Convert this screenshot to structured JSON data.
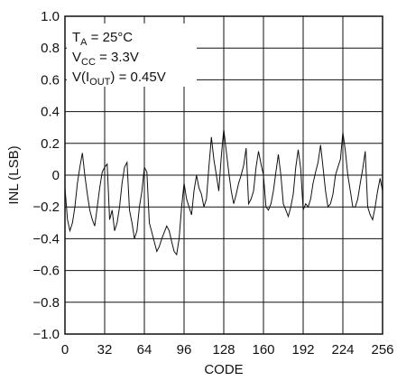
{
  "chart_data": {
    "type": "line",
    "title": "",
    "xlabel": "CODE",
    "ylabel": "INL (LSB)",
    "xlim": [
      0,
      256
    ],
    "ylim": [
      -1.0,
      1.0
    ],
    "grid": true,
    "x_ticks": [
      0,
      32,
      64,
      96,
      128,
      160,
      192,
      224,
      256
    ],
    "x_tick_labels": [
      "0",
      "32",
      "64",
      "96",
      "128",
      "160",
      "192",
      "224",
      "256"
    ],
    "y_ticks": [
      -1.0,
      -0.8,
      -0.6,
      -0.4,
      -0.2,
      0,
      0.2,
      0.4,
      0.6,
      0.8,
      1.0
    ],
    "y_tick_labels": [
      "−1.0",
      "−0.8",
      "−0.6",
      "−0.4",
      "−0.2",
      "0",
      "0.2",
      "0.4",
      "0.6",
      "0.8",
      "1.0"
    ],
    "annotations": [
      {
        "base": "T",
        "sub": "A",
        "rest": " = 25°C"
      },
      {
        "base": "V",
        "sub": "CC",
        "rest": " = 3.3V"
      },
      {
        "base": "V(I",
        "sub": "OUT",
        "rest": ") = 0.45V"
      }
    ],
    "series": [
      {
        "x": [
          0,
          2,
          4,
          6,
          8,
          10,
          12,
          14,
          16,
          18,
          20,
          22,
          24,
          26,
          28,
          30,
          32,
          34,
          36,
          38,
          40,
          42,
          44,
          46,
          48,
          50,
          52,
          54,
          56,
          58,
          60,
          62,
          64,
          66,
          68,
          70,
          72,
          74,
          76,
          78,
          80,
          82,
          84,
          86,
          88,
          90,
          92,
          94,
          96,
          98,
          100,
          102,
          104,
          106,
          108,
          110,
          112,
          114,
          116,
          118,
          120,
          122,
          124,
          126,
          128,
          130,
          132,
          134,
          136,
          138,
          140,
          142,
          144,
          146,
          148,
          150,
          152,
          154,
          156,
          158,
          160,
          162,
          164,
          166,
          168,
          170,
          172,
          174,
          176,
          178,
          180,
          182,
          184,
          186,
          188,
          190,
          192,
          194,
          196,
          198,
          200,
          202,
          204,
          206,
          208,
          210,
          212,
          214,
          216,
          218,
          220,
          222,
          224,
          226,
          228,
          230,
          232,
          234,
          236,
          238,
          240,
          242,
          244,
          246,
          248,
          250,
          252,
          254,
          256
        ],
        "y": [
          -0.08,
          -0.28,
          -0.35,
          -0.3,
          -0.2,
          -0.05,
          0.05,
          0.14,
          0.0,
          -0.12,
          -0.22,
          -0.28,
          -0.32,
          -0.2,
          -0.08,
          0.02,
          0.05,
          0.07,
          -0.28,
          -0.22,
          -0.35,
          -0.3,
          -0.2,
          -0.05,
          0.05,
          0.08,
          -0.22,
          -0.3,
          -0.4,
          -0.35,
          -0.2,
          -0.1,
          0.05,
          0.02,
          -0.3,
          -0.36,
          -0.42,
          -0.48,
          -0.45,
          -0.4,
          -0.36,
          -0.32,
          -0.35,
          -0.42,
          -0.48,
          -0.5,
          -0.4,
          -0.2,
          -0.05,
          -0.15,
          -0.2,
          -0.25,
          -0.1,
          0.0,
          -0.08,
          -0.12,
          -0.2,
          -0.15,
          0.05,
          0.24,
          0.1,
          0.0,
          -0.1,
          0.12,
          0.29,
          0.15,
          0.02,
          -0.1,
          -0.18,
          -0.12,
          -0.05,
          0.0,
          0.06,
          0.17,
          -0.18,
          -0.15,
          -0.1,
          0.05,
          0.15,
          0.07,
          0.0,
          -0.2,
          -0.22,
          -0.18,
          -0.1,
          0.02,
          0.13,
          0.0,
          -0.18,
          -0.22,
          -0.26,
          -0.2,
          -0.12,
          0.05,
          0.16,
          0.04,
          -0.22,
          -0.18,
          -0.2,
          -0.15,
          -0.05,
          0.02,
          0.08,
          0.19,
          0.05,
          -0.1,
          -0.2,
          -0.18,
          -0.12,
          0.0,
          0.05,
          0.1,
          0.27,
          0.15,
          0.0,
          -0.1,
          -0.2,
          -0.2,
          -0.15,
          -0.05,
          0.04,
          0.15,
          -0.2,
          -0.25,
          -0.28,
          -0.2,
          -0.1,
          -0.02,
          -0.1
        ]
      }
    ]
  }
}
